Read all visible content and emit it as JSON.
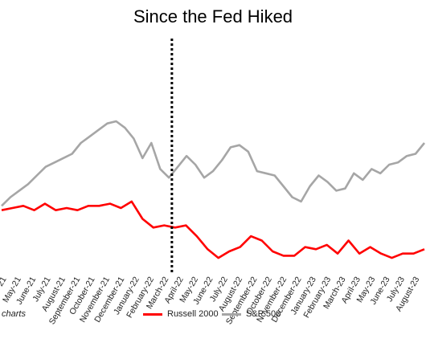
{
  "chart_data": {
    "type": "line",
    "title": "Since the Fed Hiked",
    "source_text": "charts",
    "x_labels": [
      "April-21",
      "May-21",
      "June-21",
      "July-21",
      "August-21",
      "September-21",
      "October-21",
      "November-21",
      "December-21",
      "January-22",
      "February-22",
      "March-22",
      "April-22",
      "May-22",
      "June-22",
      "July-22",
      "August-22",
      "September-22",
      "October-22",
      "November-22",
      "December-22",
      "January-23",
      "February-23",
      "March-23",
      "April-23",
      "May-23",
      "June-23",
      "July-23",
      "August-23"
    ],
    "event_marker": {
      "x": "March-22",
      "style": "dotted",
      "color": "#000000"
    },
    "ylim": [
      0,
      100
    ],
    "series": [
      {
        "name": "S&P 500",
        "color": "#a6a6a6",
        "values": [
          31,
          35,
          38,
          41,
          45,
          49,
          51,
          53,
          55,
          60,
          63,
          66,
          69,
          70,
          67,
          62,
          53,
          60,
          48,
          44,
          49,
          54,
          50,
          44,
          47,
          52,
          58,
          59,
          56,
          47,
          46,
          45,
          40,
          35,
          33,
          40,
          45,
          42,
          38,
          39,
          46,
          43,
          48,
          46,
          50,
          51,
          54,
          55,
          60
        ]
      },
      {
        "name": "Russell 2000",
        "color": "#ff0000",
        "values": [
          29,
          30,
          31,
          29,
          32,
          29,
          30,
          29,
          31,
          31,
          32,
          30,
          33,
          25,
          21,
          22,
          21,
          22,
          17,
          11,
          7,
          10,
          12,
          17,
          15,
          10,
          8,
          8,
          12,
          11,
          13,
          9,
          15,
          9,
          12,
          9,
          7,
          9,
          9,
          11
        ]
      }
    ]
  },
  "legend_items": [
    {
      "label": "Russell 2000",
      "color": "#ff0000"
    },
    {
      "label": "S&P 500",
      "color": "#a6a6a6"
    }
  ]
}
